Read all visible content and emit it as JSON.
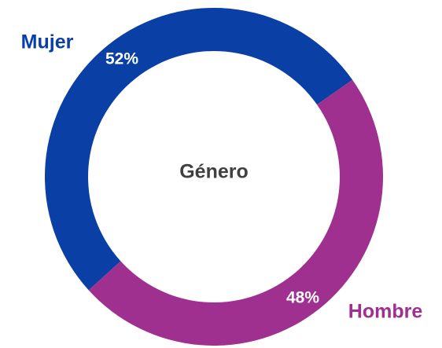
{
  "chart_data": {
    "type": "donut",
    "title": "Género",
    "categories": [
      "Mujer",
      "Hombre"
    ],
    "values": [
      52,
      48
    ],
    "value_labels": [
      "52%",
      "48%"
    ],
    "colors": [
      "#0a3fa6",
      "#a0308f"
    ]
  }
}
